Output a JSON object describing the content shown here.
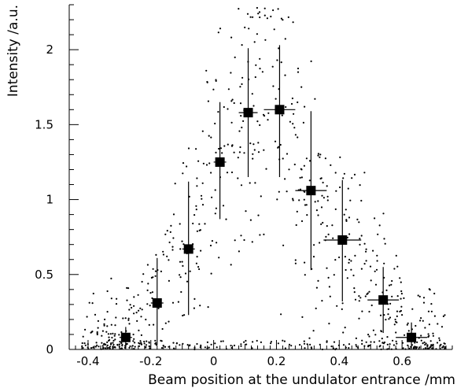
{
  "chart_data": {
    "type": "scatter",
    "xlabel": "Beam position at the undulator entrance /mm",
    "ylabel": "Intensity /a.u.",
    "xlim": [
      -0.46,
      0.76
    ],
    "ylim": [
      0,
      2.3
    ],
    "xticks": [
      -0.4,
      -0.2,
      0,
      0.2,
      0.4,
      0.6
    ],
    "xtick_labels": [
      "-0.4",
      "-0.2",
      "0",
      "0.2",
      "0.4",
      "0.6"
    ],
    "yticks": [
      0,
      0.5,
      1,
      1.5,
      2
    ],
    "ytick_labels": [
      "0",
      "0.5",
      "1",
      "1.5",
      "2"
    ],
    "grid": false,
    "series": [
      {
        "kind": "binned-mean",
        "marker": "square",
        "x": [
          -0.28,
          -0.18,
          -0.08,
          0.02,
          0.11,
          0.21,
          0.31,
          0.41,
          0.54,
          0.63
        ],
        "y": [
          0.08,
          0.31,
          0.67,
          1.25,
          1.58,
          1.6,
          1.06,
          0.73,
          0.33,
          0.08
        ],
        "xerr": [
          0.02,
          0.02,
          0.02,
          0.02,
          0.03,
          0.05,
          0.05,
          0.06,
          0.05,
          0.05
        ],
        "yerr_low": [
          0.07,
          0.28,
          0.44,
          0.38,
          0.43,
          0.45,
          0.53,
          0.41,
          0.22,
          0.08
        ],
        "yerr_high": [
          0.07,
          0.3,
          0.45,
          0.4,
          0.43,
          0.43,
          0.53,
          0.4,
          0.22,
          0.1
        ]
      }
    ],
    "scatter_note": "Dense cloud of individual shot measurements under the binned means."
  }
}
